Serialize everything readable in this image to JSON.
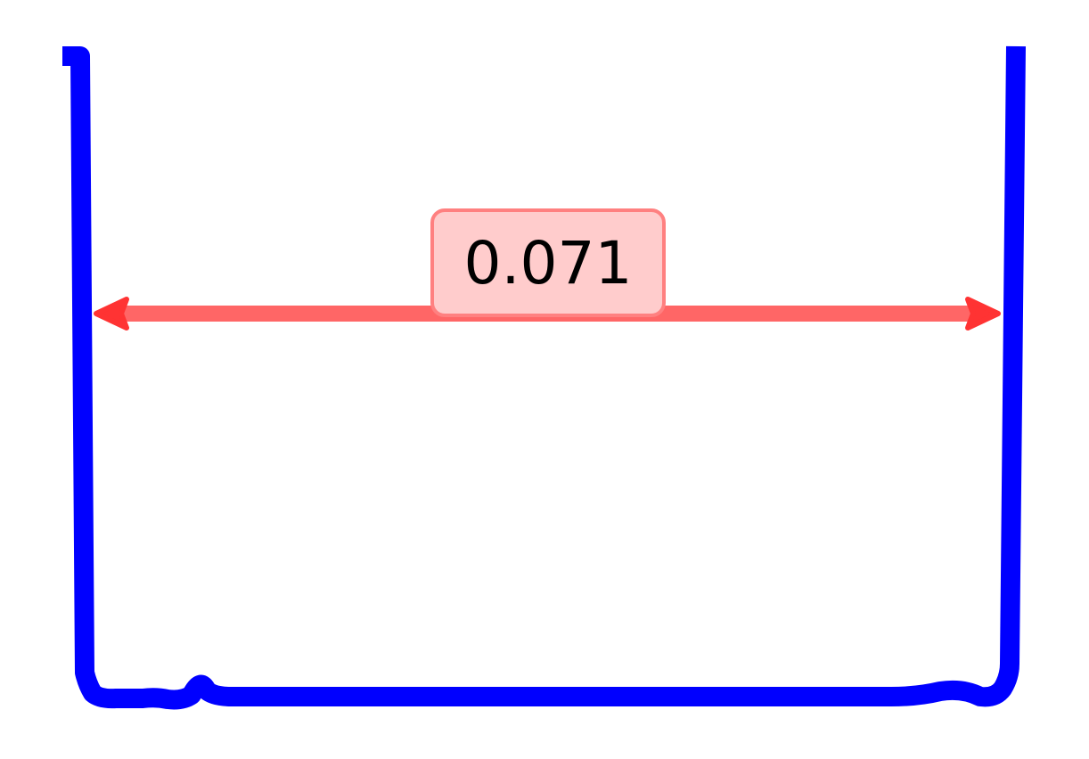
{
  "measurement": {
    "label": "0.071"
  },
  "colors": {
    "container_stroke": "#0000ff",
    "arrow_stroke": "#ff6666",
    "arrow_head": "#ff3333",
    "label_fill": "#ffcccc",
    "label_border": "#ff8080",
    "label_text": "#000000"
  }
}
